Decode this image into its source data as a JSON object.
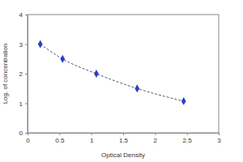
{
  "chart_data": {
    "type": "line",
    "x_label": "Optical Density",
    "y_label": "Log. of concentration",
    "x": [
      0.2,
      0.55,
      1.08,
      1.72,
      2.45
    ],
    "values": [
      3.0,
      2.5,
      2.0,
      1.5,
      1.07
    ],
    "color": "#2a3fc0",
    "marker": "diamond",
    "line_style": "dashed",
    "xlim": [
      0,
      3
    ],
    "xticks": [
      0,
      0.5,
      1,
      1.5,
      2,
      2.5,
      3
    ],
    "ylim": [
      0,
      4
    ],
    "yticks": [
      0,
      1,
      2,
      3,
      4
    ],
    "grid": false
  }
}
